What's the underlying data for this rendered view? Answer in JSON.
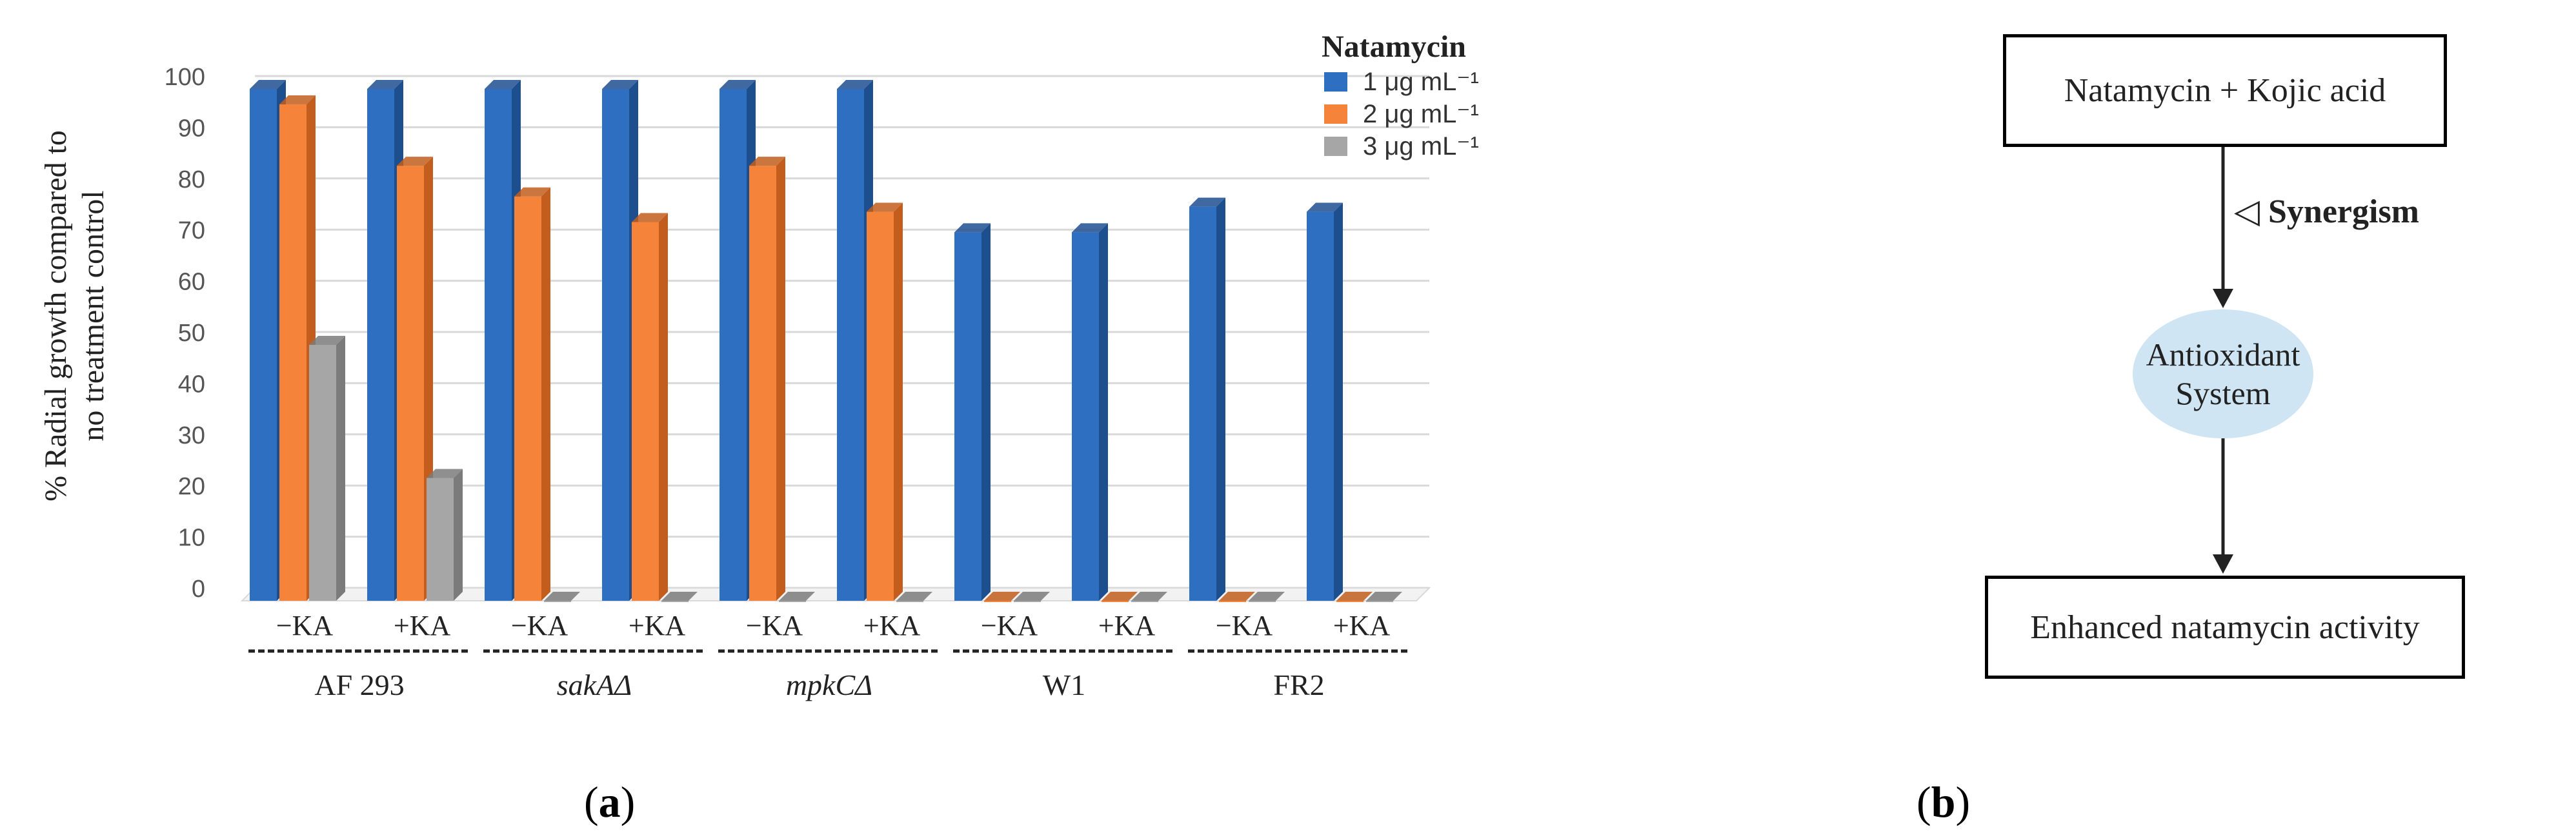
{
  "chart_data": {
    "type": "bar",
    "ylabel_line1": "% Radial growth compared to",
    "ylabel_line2": "no treatment control",
    "ylim": [
      0,
      100
    ],
    "yticks": [
      "0",
      "10",
      "20",
      "30",
      "40",
      "50",
      "60",
      "70",
      "80",
      "90",
      "100"
    ],
    "legend_title": "Natamycin",
    "legend_position": "top-right",
    "categories": [
      "−KA",
      "+KA",
      "−KA",
      "+KA",
      "−KA",
      "+KA",
      "−KA",
      "+KA",
      "−KA",
      "+KA"
    ],
    "groups": [
      {
        "name": "AF 293",
        "italic": false
      },
      {
        "name": "sakAΔ",
        "italic": true
      },
      {
        "name": "mpkCΔ",
        "italic": true
      },
      {
        "name": "W1",
        "italic": false
      },
      {
        "name": "FR2",
        "italic": false
      }
    ],
    "series": [
      {
        "name": "1 μg mL⁻¹",
        "color": "#2e6fc1",
        "side": "#1d4f8f",
        "values": [
          100,
          100,
          100,
          100,
          100,
          100,
          72,
          72,
          77,
          76
        ]
      },
      {
        "name": "2 μg mL⁻¹",
        "color": "#f5833a",
        "side": "#c25d1d",
        "values": [
          97,
          85,
          79,
          74,
          85,
          76,
          0,
          0,
          0,
          0
        ]
      },
      {
        "name": "3 μg mL⁻¹",
        "color": "#a6a6a6",
        "side": "#7b7b7b",
        "values": [
          50,
          24,
          0,
          0,
          0,
          0,
          0,
          0,
          0,
          0
        ]
      }
    ]
  },
  "diagram": {
    "top_box": "Natamycin + Kojic acid",
    "arrow_symbol": "◁",
    "arrow_label": "Synergism",
    "ellipse_line1": "Antioxidant",
    "ellipse_line2": "System",
    "bottom_box": "Enhanced natamycin activity"
  },
  "panel_labels": {
    "a_open": "(",
    "a_letter": "a",
    "a_close": ")",
    "b_open": "(",
    "b_letter": "b",
    "b_close": ")"
  }
}
